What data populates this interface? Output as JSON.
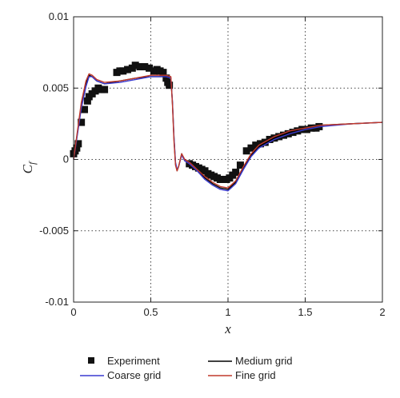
{
  "chart_data": {
    "type": "line",
    "xlabel": "x",
    "ylabel": "C",
    "ylabel_sub": "f",
    "xlim": [
      0,
      2
    ],
    "ylim": [
      -0.01,
      0.01
    ],
    "x_ticks": [
      0,
      0.5,
      1,
      1.5,
      2
    ],
    "x_tick_labels": [
      "0",
      "0.5",
      "1",
      "1.5",
      "2"
    ],
    "y_ticks": [
      -0.01,
      -0.005,
      0,
      0.005,
      0.01
    ],
    "y_tick_labels": [
      "-0.01",
      "-0.005",
      "0",
      "0.005",
      "0.01"
    ],
    "grid": "dotted",
    "legend": "below",
    "series": [
      {
        "name": "Experiment",
        "style": "marker",
        "color": "#111111",
        "x": [
          0.0,
          0.01,
          0.02,
          0.03,
          0.05,
          0.07,
          0.09,
          0.1,
          0.12,
          0.14,
          0.16,
          0.18,
          0.2,
          0.28,
          0.3,
          0.32,
          0.35,
          0.38,
          0.4,
          0.43,
          0.46,
          0.49,
          0.52,
          0.54,
          0.56,
          0.58,
          0.6,
          0.61,
          0.62,
          0.75,
          0.77,
          0.79,
          0.81,
          0.83,
          0.85,
          0.87,
          0.89,
          0.91,
          0.93,
          0.95,
          0.97,
          0.99,
          1.01,
          1.03,
          1.05,
          1.08,
          1.12,
          1.15,
          1.18,
          1.21,
          1.24,
          1.27,
          1.3,
          1.33,
          1.36,
          1.39,
          1.42,
          1.45,
          1.48,
          1.51,
          1.54,
          1.57,
          1.59
        ],
        "y": [
          0.0004,
          0.0006,
          0.0008,
          0.0011,
          0.0026,
          0.0035,
          0.0041,
          0.0044,
          0.0046,
          0.0048,
          0.005,
          0.0049,
          0.0049,
          0.0061,
          0.0062,
          0.0062,
          0.0063,
          0.0064,
          0.0066,
          0.0065,
          0.0065,
          0.0064,
          0.0062,
          0.0063,
          0.0062,
          0.0061,
          0.0057,
          0.0054,
          0.0052,
          -0.0003,
          -0.0004,
          -0.0005,
          -0.0006,
          -0.0007,
          -0.0008,
          -0.001,
          -0.0011,
          -0.0012,
          -0.0013,
          -0.0014,
          -0.0014,
          -0.0014,
          -0.0013,
          -0.0011,
          -0.0009,
          -0.0004,
          0.0006,
          0.0008,
          0.001,
          0.0011,
          0.0012,
          0.0014,
          0.0015,
          0.0016,
          0.0017,
          0.0018,
          0.0019,
          0.002,
          0.0021,
          0.0021,
          0.0022,
          0.0022,
          0.0023
        ]
      },
      {
        "name": "Medium grid",
        "style": "line",
        "color": "#000000",
        "x": [
          0.0,
          0.02,
          0.05,
          0.08,
          0.1,
          0.12,
          0.15,
          0.2,
          0.3,
          0.4,
          0.5,
          0.55,
          0.6,
          0.63,
          0.64,
          0.65,
          0.66,
          0.67,
          0.68,
          0.7,
          0.72,
          0.75,
          0.8,
          0.85,
          0.9,
          0.95,
          1.0,
          1.05,
          1.1,
          1.15,
          1.2,
          1.3,
          1.4,
          1.5,
          1.6,
          1.8,
          2.0
        ],
        "y": [
          0.0,
          0.0015,
          0.0038,
          0.0053,
          0.0059,
          0.0058,
          0.0055,
          0.0053,
          0.0055,
          0.0057,
          0.0058,
          0.0058,
          0.0058,
          0.0057,
          0.004,
          0.0015,
          -0.0003,
          -0.0008,
          -0.0005,
          0.0004,
          -0.0001,
          -0.0002,
          -0.0007,
          -0.0013,
          -0.0017,
          -0.002,
          -0.0021,
          -0.0016,
          -0.0006,
          0.0003,
          0.0009,
          0.0015,
          0.0019,
          0.0022,
          0.0024,
          0.0025,
          0.0026
        ]
      },
      {
        "name": "Coarse grid",
        "style": "line",
        "color": "#3a3ad0",
        "x": [
          0.0,
          0.02,
          0.05,
          0.08,
          0.1,
          0.12,
          0.15,
          0.2,
          0.3,
          0.4,
          0.5,
          0.55,
          0.6,
          0.63,
          0.64,
          0.65,
          0.66,
          0.67,
          0.68,
          0.7,
          0.72,
          0.75,
          0.8,
          0.85,
          0.9,
          0.95,
          1.0,
          1.05,
          1.1,
          1.15,
          1.2,
          1.3,
          1.4,
          1.5,
          1.6,
          1.8,
          2.0
        ],
        "y": [
          0.0,
          0.0014,
          0.0036,
          0.0051,
          0.0058,
          0.0058,
          0.0055,
          0.0053,
          0.0054,
          0.0056,
          0.0058,
          0.0058,
          0.0058,
          0.0057,
          0.0041,
          0.0016,
          -0.0002,
          -0.0007,
          -0.0005,
          0.0003,
          -0.0001,
          -0.0003,
          -0.0008,
          -0.0014,
          -0.0018,
          -0.0021,
          -0.0022,
          -0.0017,
          -0.0007,
          0.0002,
          0.0008,
          0.0014,
          0.0018,
          0.0021,
          0.0023,
          0.0025,
          0.0026
        ]
      },
      {
        "name": "Fine grid",
        "style": "line",
        "color": "#c0392b",
        "x": [
          0.0,
          0.02,
          0.05,
          0.08,
          0.1,
          0.12,
          0.15,
          0.2,
          0.3,
          0.4,
          0.5,
          0.55,
          0.6,
          0.63,
          0.64,
          0.65,
          0.66,
          0.67,
          0.68,
          0.7,
          0.72,
          0.75,
          0.8,
          0.85,
          0.9,
          0.95,
          1.0,
          1.05,
          1.1,
          1.15,
          1.2,
          1.3,
          1.4,
          1.5,
          1.6,
          1.8,
          2.0
        ],
        "y": [
          0.0,
          0.0016,
          0.004,
          0.0055,
          0.006,
          0.0059,
          0.0056,
          0.0054,
          0.0055,
          0.0057,
          0.0059,
          0.0059,
          0.0059,
          0.0058,
          0.0039,
          0.0013,
          -0.0004,
          -0.0008,
          -0.0005,
          0.0004,
          0.0,
          -0.0002,
          -0.0007,
          -0.0012,
          -0.0016,
          -0.0019,
          -0.002,
          -0.0015,
          -0.0005,
          0.0004,
          0.001,
          0.0016,
          0.002,
          0.0022,
          0.0024,
          0.0025,
          0.0026
        ]
      }
    ]
  }
}
